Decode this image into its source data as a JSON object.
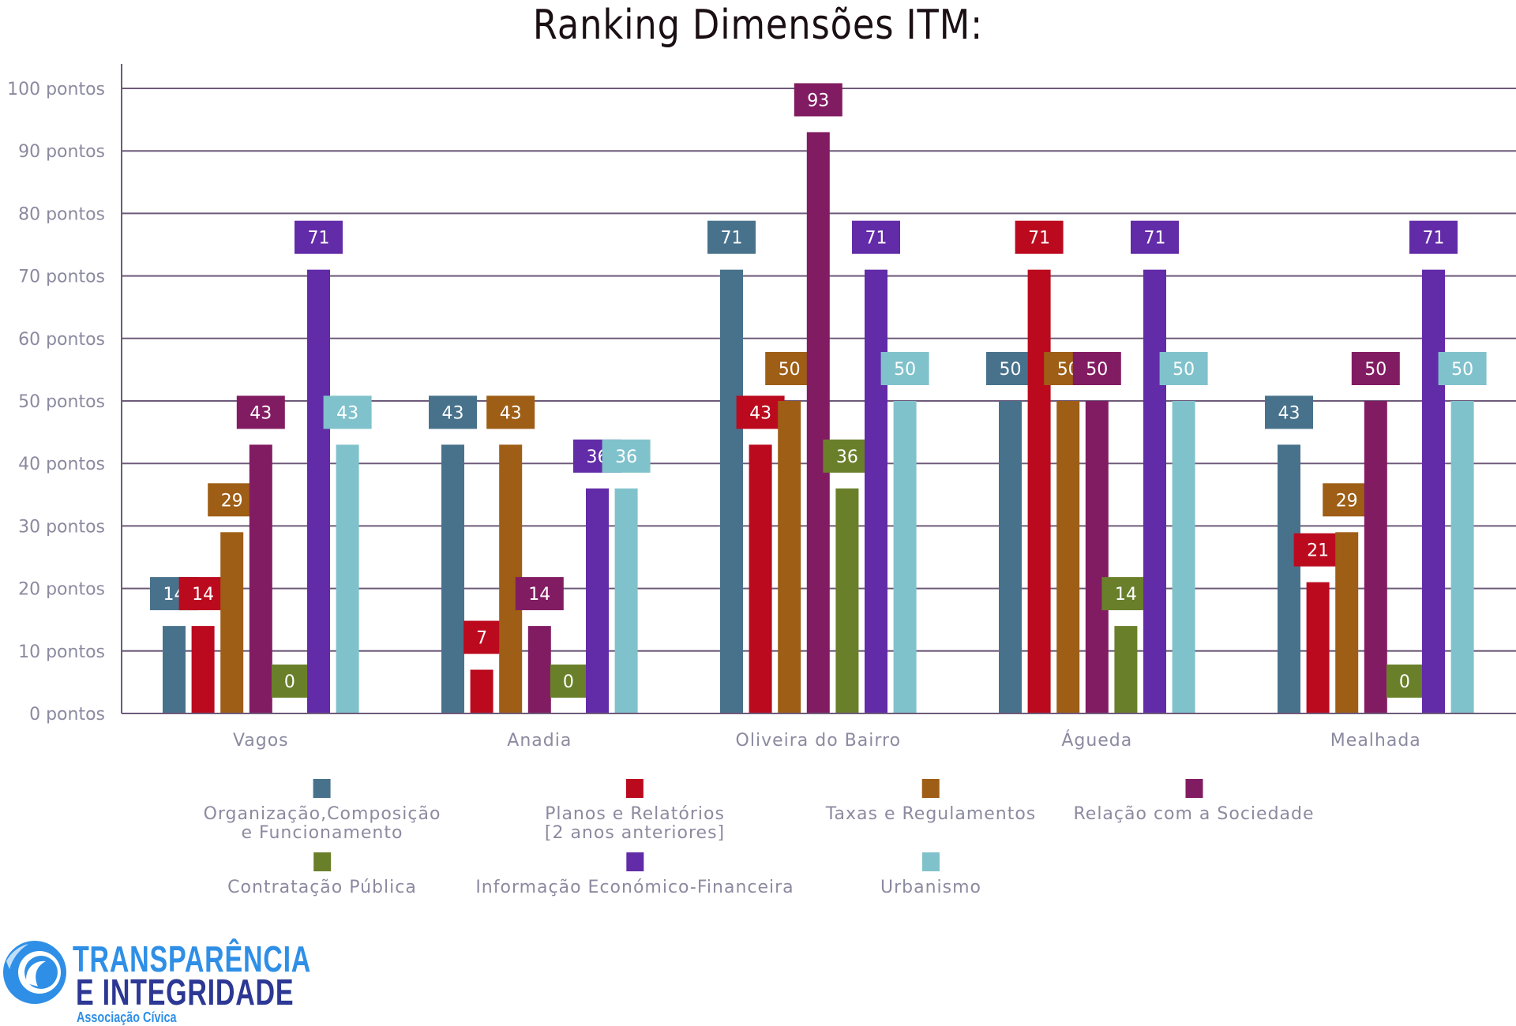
{
  "chart_data": {
    "type": "bar",
    "title": "Ranking Dimensões ITM:",
    "xlabel": "",
    "ylabel": "",
    "ylim": [
      0,
      100
    ],
    "grid": true,
    "legend_position": "bottom",
    "y_ticks": [
      {
        "value": 0,
        "label": "0 pontos"
      },
      {
        "value": 10,
        "label": "10 pontos"
      },
      {
        "value": 20,
        "label": "20 pontos"
      },
      {
        "value": 30,
        "label": "30 pontos"
      },
      {
        "value": 40,
        "label": "40 pontos"
      },
      {
        "value": 50,
        "label": "50 pontos"
      },
      {
        "value": 60,
        "label": "60 pontos"
      },
      {
        "value": 70,
        "label": "70 pontos"
      },
      {
        "value": 80,
        "label": "80 pontos"
      },
      {
        "value": 90,
        "label": "90 pontos"
      },
      {
        "value": 100,
        "label": "100 pontos"
      }
    ],
    "categories": [
      "Vagos",
      "Anadia",
      "Oliveira do Bairro",
      "Águeda",
      "Mealhada"
    ],
    "series": [
      {
        "name": "Organização,Composição\ne Funcionamento",
        "color": "#48728c",
        "values": [
          14,
          43,
          71,
          50,
          43
        ]
      },
      {
        "name": "Planos e Relatórios\n[2 anos anteriores]",
        "color": "#bb0a1e",
        "values": [
          14,
          7,
          43,
          71,
          21
        ]
      },
      {
        "name": "Taxas e Regulamentos",
        "color": "#9e5e16",
        "values": [
          29,
          43,
          50,
          50,
          29
        ]
      },
      {
        "name": "Relação com a Sociedade",
        "color": "#821c62",
        "values": [
          43,
          14,
          93,
          50,
          50
        ]
      },
      {
        "name": "Contratação Pública",
        "color": "#6a7f2a",
        "values": [
          0,
          0,
          36,
          14,
          0
        ]
      },
      {
        "name": "Informação Económico-Financeira",
        "color": "#622ba8",
        "values": [
          71,
          36,
          71,
          71,
          71
        ]
      },
      {
        "name": "Urbanismo",
        "color": "#80c2cc",
        "values": [
          43,
          36,
          50,
          50,
          50
        ]
      }
    ]
  },
  "logo": {
    "line1": "TRANSPARÊNCIA",
    "line2": "E INTEGRIDADE",
    "line3": "Associação Cívica",
    "primary_color": "#2f8fe6",
    "secondary_color": "#2c3893"
  }
}
